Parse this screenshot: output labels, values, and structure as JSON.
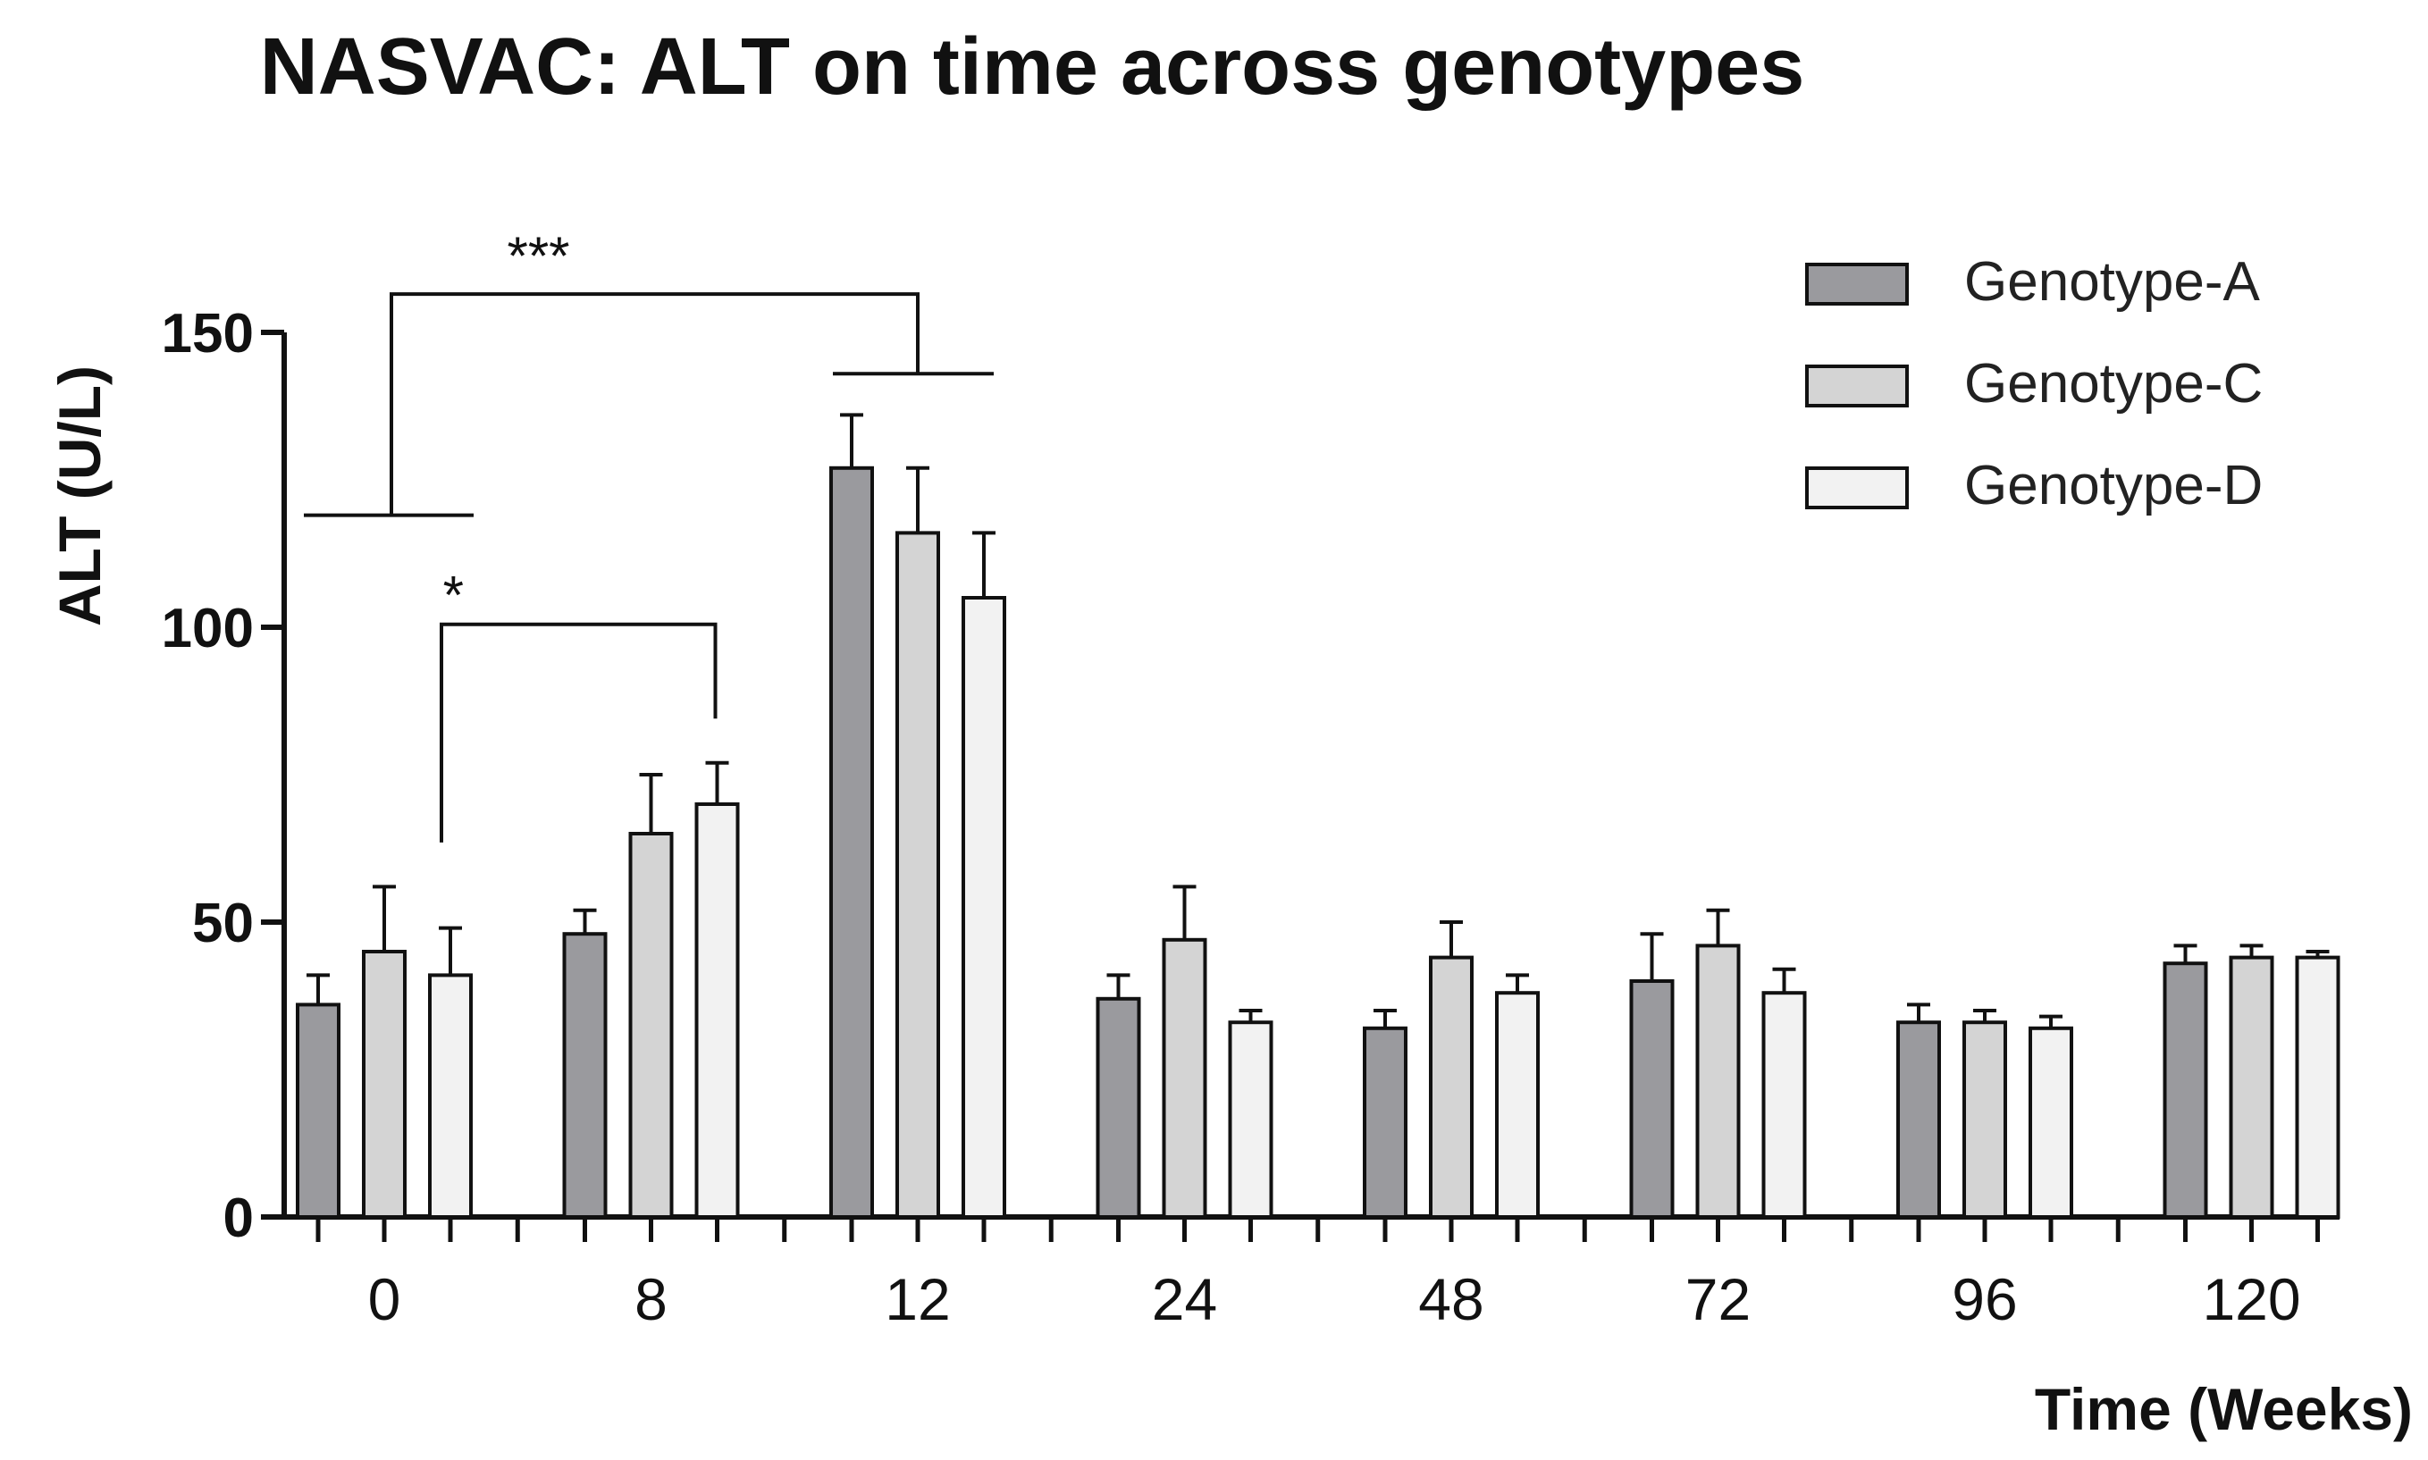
{
  "chart_data": {
    "type": "bar",
    "title": "NASVAC: ALT on time across genotypes",
    "xlabel": "Time (Weeks)",
    "ylabel": "ALT (U/L)",
    "ylim": [
      0,
      150
    ],
    "yticks": [
      "0",
      "50",
      "100",
      "150"
    ],
    "ytick_values": [
      0,
      50,
      100,
      150
    ],
    "categories": [
      "0",
      "8",
      "12",
      "24",
      "48",
      "72",
      "96",
      "120"
    ],
    "series": [
      {
        "name": "Genotype-A",
        "color": "#9a9a9e",
        "values": [
          36,
          48,
          127,
          37,
          32,
          40,
          33,
          43
        ],
        "errors": [
          5,
          4,
          9,
          4,
          3,
          8,
          3,
          3
        ]
      },
      {
        "name": "Genotype-C",
        "color": "#d4d4d4",
        "values": [
          45,
          65,
          116,
          47,
          44,
          46,
          33,
          44
        ],
        "errors": [
          11,
          10,
          11,
          9,
          6,
          6,
          2,
          2
        ]
      },
      {
        "name": "Genotype-D",
        "color": "#f2f2f2",
        "values": [
          41,
          70,
          105,
          33,
          38,
          38,
          32,
          44
        ],
        "errors": [
          8,
          7,
          11,
          2,
          3,
          4,
          2,
          1
        ]
      }
    ],
    "legend_position": "top-right",
    "annotations": [
      {
        "label": "***",
        "from_category": "0",
        "to_category": "12",
        "description": "significance bracket"
      },
      {
        "label": "*",
        "from_category": "0",
        "to_category": "8",
        "description": "significance bracket"
      }
    ]
  }
}
